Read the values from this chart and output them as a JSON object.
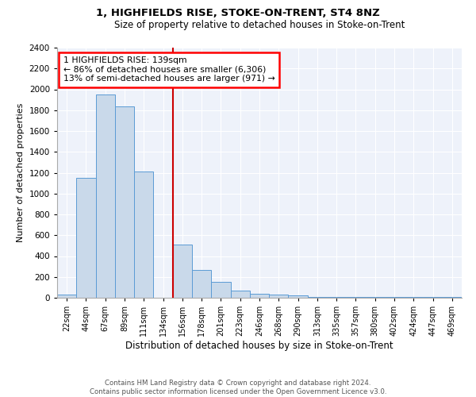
{
  "title1": "1, HIGHFIELDS RISE, STOKE-ON-TRENT, ST4 8NZ",
  "title2": "Size of property relative to detached houses in Stoke-on-Trent",
  "xlabel": "Distribution of detached houses by size in Stoke-on-Trent",
  "ylabel": "Number of detached properties",
  "footer1": "Contains HM Land Registry data © Crown copyright and database right 2024.",
  "footer2": "Contains public sector information licensed under the Open Government Licence v3.0.",
  "annotation_line1": "1 HIGHFIELDS RISE: 139sqm",
  "annotation_line2": "← 86% of detached houses are smaller (6,306)",
  "annotation_line3": "13% of semi-detached houses are larger (971) →",
  "bar_heights": [
    30,
    1150,
    1950,
    1840,
    1210,
    0,
    510,
    265,
    150,
    65,
    35,
    30,
    20,
    5,
    5,
    5,
    5,
    5,
    5,
    5,
    5
  ],
  "bar_color": "#c9d9ea",
  "bar_edge_color": "#5b9bd5",
  "red_line_color": "#cc0000",
  "background_color": "#eef2fa",
  "ylim": [
    0,
    2400
  ],
  "yticks": [
    0,
    200,
    400,
    600,
    800,
    1000,
    1200,
    1400,
    1600,
    1800,
    2000,
    2200,
    2400
  ],
  "tick_labels": [
    "22sqm",
    "44sqm",
    "67sqm",
    "89sqm",
    "111sqm",
    "134sqm",
    "156sqm",
    "178sqm",
    "201sqm",
    "223sqm",
    "246sqm",
    "268sqm",
    "290sqm",
    "313sqm",
    "335sqm",
    "357sqm",
    "380sqm",
    "402sqm",
    "424sqm",
    "447sqm",
    "469sqm"
  ],
  "red_line_index": 5.5,
  "title1_fontsize": 9.5,
  "title2_fontsize": 8.5,
  "ylabel_fontsize": 8,
  "xlabel_fontsize": 8.5,
  "annot_fontsize": 7.8,
  "tick_fontsize": 7,
  "ytick_fontsize": 7.5
}
